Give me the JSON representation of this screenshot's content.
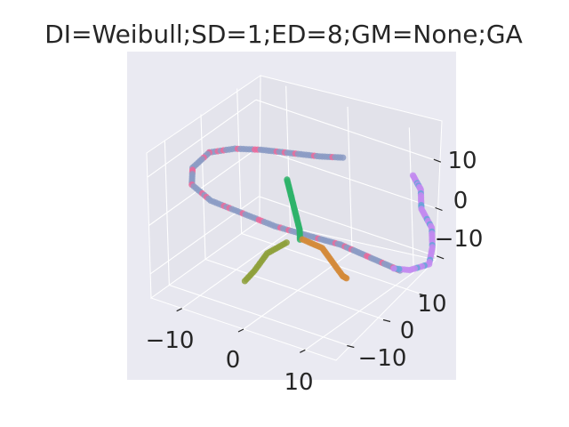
{
  "chart_data": {
    "type": "scatter",
    "projection": "3d",
    "title": "DI=Weibull;SD=1;ED=8;GM=None;GA",
    "xlabel": "",
    "ylabel": "",
    "zlabel": "",
    "xlim": [
      -15,
      15
    ],
    "ylim": [
      -15,
      15
    ],
    "zlim": [
      -15,
      15
    ],
    "x_ticks": [
      "−10",
      "0",
      "10"
    ],
    "y_ticks": [
      "−10",
      "0",
      "10"
    ],
    "z_ticks": [
      "−10",
      "0",
      "10"
    ],
    "grid": true,
    "legend": "none",
    "colors": {
      "background": "#eaeaf2",
      "pane_left": "#e4e4ec",
      "pane_back": "#e2e2ea",
      "pane_floor": "#e7e7ef",
      "grid": "#ffffff",
      "text": "#262626"
    },
    "series": [
      {
        "color": "#8b9bc4",
        "secondary_color": "#ea6a9b",
        "points": [
          [
            -12,
            -3,
            10
          ],
          [
            -9,
            -1,
            11
          ],
          [
            -6,
            1,
            11
          ],
          [
            -3,
            4,
            10
          ],
          [
            0,
            7,
            9
          ],
          [
            2,
            10,
            8
          ]
        ]
      },
      {
        "color": "#8b9bc4",
        "secondary_color": "#ea6a9b",
        "points": [
          [
            -12,
            -3,
            10
          ],
          [
            -13,
            -6,
            8
          ],
          [
            -12,
            -8,
            6
          ],
          [
            -9,
            -8,
            4
          ],
          [
            -5,
            -6,
            2
          ],
          [
            -1,
            -4,
            0
          ],
          [
            3,
            -1,
            -2
          ],
          [
            6,
            2,
            -4
          ],
          [
            8,
            4,
            -6
          ],
          [
            10,
            6,
            -8
          ],
          [
            12,
            8,
            -10
          ]
        ]
      },
      {
        "color": "#c38bf0",
        "secondary_color": "#66a6d8",
        "points": [
          [
            14,
            9,
            10
          ],
          [
            14,
            11,
            6
          ],
          [
            14,
            11,
            2
          ],
          [
            15,
            12,
            -2
          ],
          [
            15,
            12,
            -6
          ],
          [
            15,
            11,
            -9
          ],
          [
            13,
            9,
            -10
          ],
          [
            11,
            8,
            -10
          ]
        ]
      },
      {
        "color": "#2eb36a",
        "points": [
          [
            0,
            -2,
            9
          ],
          [
            0,
            -1,
            5
          ],
          [
            0,
            0,
            1
          ],
          [
            0,
            1,
            -3
          ],
          [
            0,
            1,
            -5
          ]
        ]
      },
      {
        "color": "#d4893a",
        "points": [
          [
            1,
            0,
            -4
          ],
          [
            3,
            2,
            -6
          ],
          [
            4,
            3,
            -9
          ],
          [
            5,
            4,
            -12
          ],
          [
            5,
            5,
            -13
          ]
        ]
      },
      {
        "color": "#8ea03b",
        "points": [
          [
            -1,
            -1,
            -5
          ],
          [
            -3,
            -3,
            -7
          ],
          [
            -4,
            -5,
            -10
          ],
          [
            -5,
            -6,
            -12
          ]
        ]
      }
    ]
  }
}
